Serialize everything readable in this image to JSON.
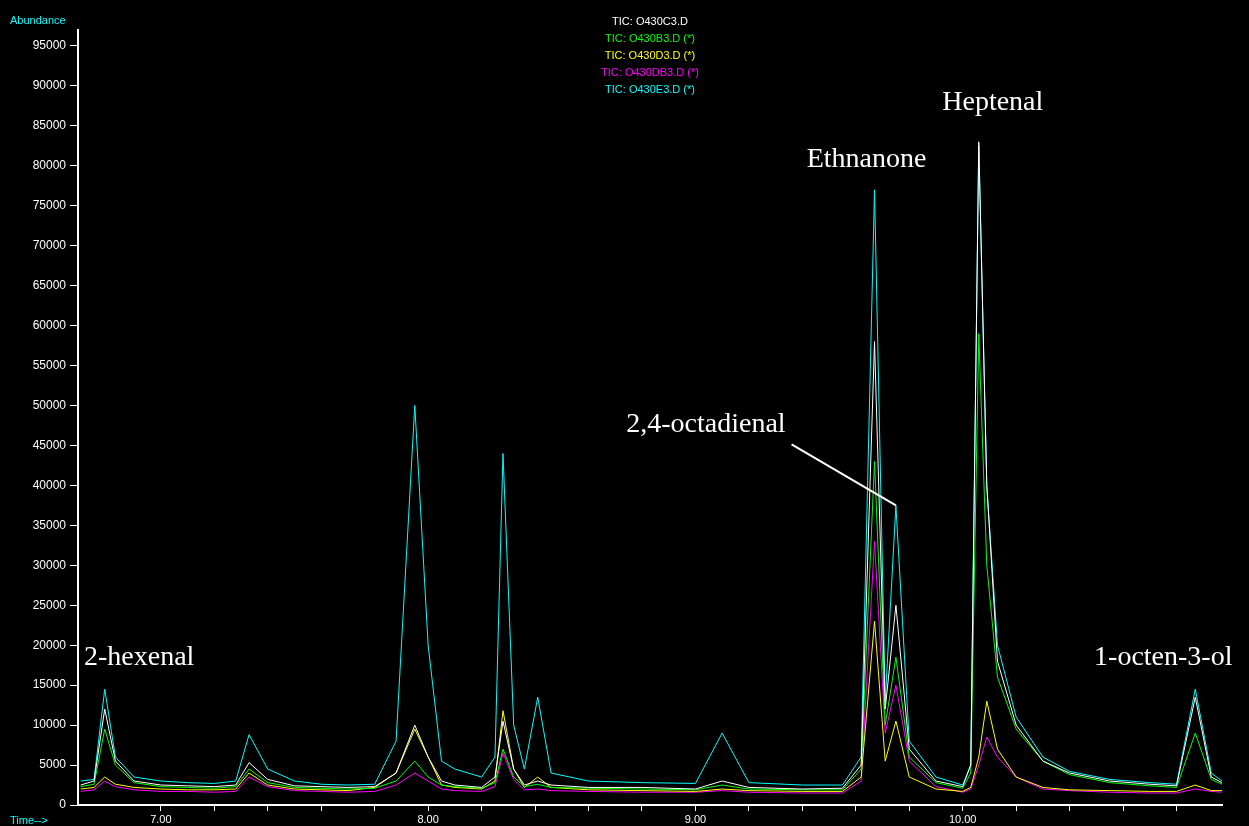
{
  "chart_data": {
    "type": "line",
    "ylabel": "Abundance",
    "xlabel": "Time-->",
    "legend": "top",
    "marker": "none",
    "grid": false,
    "xlim": [
      6.69,
      10.97
    ],
    "ylim": [
      0,
      97000
    ],
    "xticks": [
      {
        "value": 7,
        "label": "7.00"
      },
      {
        "value": 7.2,
        "label": null
      },
      {
        "value": 7.4,
        "label": null
      },
      {
        "value": 7.6,
        "label": null
      },
      {
        "value": 7.8,
        "label": null
      },
      {
        "value": 8,
        "label": "8.00"
      },
      {
        "value": 8.2,
        "label": null
      },
      {
        "value": 8.4,
        "label": null
      },
      {
        "value": 8.6,
        "label": null
      },
      {
        "value": 8.8,
        "label": null
      },
      {
        "value": 9,
        "label": "9.00"
      },
      {
        "value": 9.2,
        "label": null
      },
      {
        "value": 9.4,
        "label": null
      },
      {
        "value": 9.6,
        "label": null
      },
      {
        "value": 9.8,
        "label": null
      },
      {
        "value": 10,
        "label": "10.00"
      },
      {
        "value": 10.2,
        "label": null
      },
      {
        "value": 10.4,
        "label": null
      },
      {
        "value": 10.6,
        "label": null
      },
      {
        "value": 10.8,
        "label": null
      }
    ],
    "yticks": [
      0,
      5000,
      10000,
      15000,
      20000,
      25000,
      30000,
      35000,
      40000,
      45000,
      50000,
      55000,
      60000,
      65000,
      70000,
      75000,
      80000,
      85000,
      90000,
      95000
    ],
    "x": [
      6.7,
      6.75,
      6.79,
      6.83,
      6.9,
      7.0,
      7.1,
      7.2,
      7.28,
      7.33,
      7.4,
      7.5,
      7.6,
      7.7,
      7.8,
      7.88,
      7.95,
      8.0,
      8.05,
      8.1,
      8.2,
      8.25,
      8.28,
      8.32,
      8.36,
      8.41,
      8.46,
      8.6,
      8.8,
      9.0,
      9.1,
      9.2,
      9.4,
      9.55,
      9.62,
      9.67,
      9.71,
      9.75,
      9.8,
      9.9,
      10.0,
      10.03,
      10.06,
      10.09,
      10.13,
      10.2,
      10.3,
      10.4,
      10.55,
      10.7,
      10.8,
      10.87,
      10.93,
      10.97
    ],
    "series": [
      {
        "name": "TIC: O430C3.D",
        "color": "#ffffff",
        "values": [
          2500,
          3000,
          12000,
          5500,
          3000,
          2500,
          2400,
          2300,
          2500,
          5300,
          3200,
          2400,
          2300,
          2200,
          2300,
          4000,
          10000,
          6000,
          3000,
          2500,
          2200,
          3500,
          10500,
          4500,
          2500,
          3000,
          2500,
          2200,
          2200,
          2000,
          3000,
          2200,
          2000,
          2100,
          5000,
          58000,
          12000,
          25000,
          7000,
          3000,
          2300,
          5000,
          83000,
          40000,
          18000,
          10000,
          5500,
          4000,
          3000,
          2600,
          2400,
          13500,
          3500,
          2800
        ]
      },
      {
        "name": "TIC: O430B3.D (*)",
        "color": "#00ff00",
        "values": [
          2300,
          2600,
          9500,
          5000,
          2800,
          2300,
          2200,
          2100,
          2300,
          4500,
          2800,
          2200,
          2100,
          2000,
          2100,
          3000,
          5500,
          3500,
          2500,
          2300,
          2100,
          2800,
          7000,
          3500,
          2300,
          2600,
          2200,
          2100,
          2000,
          1900,
          2500,
          2000,
          1900,
          1900,
          4500,
          43000,
          10000,
          18500,
          6000,
          2800,
          2100,
          4000,
          59000,
          30000,
          16000,
          9500,
          5500,
          3800,
          2800,
          2400,
          2200,
          9000,
          3200,
          2600
        ]
      },
      {
        "name": "TIC: O430D3.D (*)",
        "color": "#ffff00",
        "values": [
          2000,
          2200,
          3500,
          2600,
          2200,
          2000,
          1900,
          1900,
          2000,
          4000,
          2500,
          2000,
          1900,
          1800,
          2200,
          4000,
          9500,
          6000,
          2500,
          2200,
          2000,
          3000,
          11800,
          4500,
          2200,
          3500,
          2200,
          1900,
          1800,
          1700,
          2000,
          1800,
          1700,
          1700,
          3500,
          23000,
          5500,
          10500,
          3500,
          2000,
          1700,
          2200,
          6000,
          13000,
          7000,
          3500,
          2200,
          1900,
          1800,
          1700,
          1700,
          2500,
          1800,
          1800
        ]
      },
      {
        "name": "TIC: O430DB3.D (*)",
        "color": "#ff00ff",
        "values": [
          1700,
          1900,
          3000,
          2300,
          1900,
          1700,
          1700,
          1600,
          1700,
          3500,
          2300,
          1800,
          1700,
          1600,
          1700,
          2500,
          4000,
          3000,
          2000,
          1800,
          1700,
          2300,
          6500,
          3200,
          1900,
          2000,
          1800,
          1700,
          1600,
          1600,
          1800,
          1600,
          1500,
          1500,
          3000,
          33000,
          9000,
          15000,
          5500,
          2300,
          1600,
          2000,
          5000,
          8500,
          6000,
          3500,
          2000,
          1800,
          1600,
          1500,
          1500,
          2000,
          1700,
          1600
        ]
      },
      {
        "name": "TIC: O430E3.D (*)",
        "color": "#00ffff",
        "values": [
          3000,
          3200,
          14500,
          6000,
          3500,
          3000,
          2800,
          2700,
          3000,
          8800,
          4500,
          3000,
          2600,
          2500,
          2600,
          8000,
          50000,
          20000,
          5500,
          4500,
          3500,
          6000,
          44000,
          10000,
          4500,
          13500,
          4000,
          3000,
          2800,
          2700,
          9000,
          2800,
          2500,
          2500,
          6000,
          77000,
          13000,
          37500,
          8000,
          3500,
          2500,
          5000,
          82500,
          40000,
          20000,
          11000,
          6000,
          4200,
          3200,
          2800,
          2600,
          14500,
          4000,
          3000
        ]
      }
    ],
    "annotations": [
      {
        "text": "2-hexenal",
        "x": 6.79,
        "y": 14500
      },
      {
        "text": "Ethnanone",
        "x": 9.67,
        "y": 77000
      },
      {
        "text": "Heptenal",
        "x": 10.06,
        "y": 83000
      },
      {
        "text": "2,4-octadienal",
        "x": 9.75,
        "y": 37500
      },
      {
        "text": "1-octen-3-ol",
        "x": 10.87,
        "y": 14500
      }
    ]
  }
}
